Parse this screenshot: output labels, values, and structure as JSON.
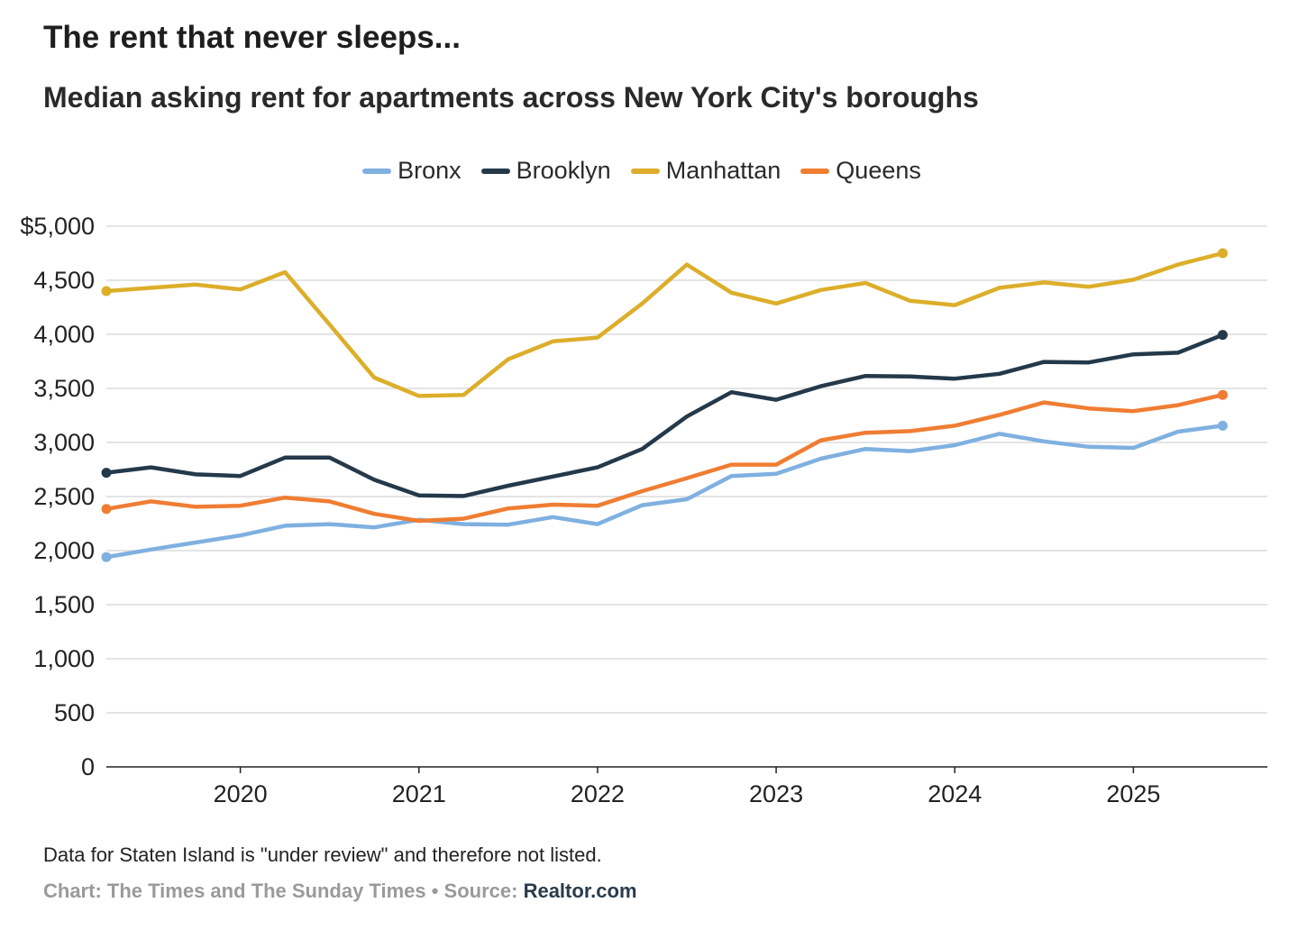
{
  "chart_data": {
    "type": "line",
    "title": "The rent that never sleeps...",
    "subtitle": "Median asking rent for apartments across New York City's boroughs",
    "xlabel": "",
    "ylabel": "",
    "y_ticks": [
      "$5,000",
      "4,500",
      "4,000",
      "3,500",
      "3,000",
      "2,500",
      "2,000",
      "1,500",
      "1,000",
      "500",
      "0"
    ],
    "y_tick_values": [
      5000,
      4500,
      4000,
      3500,
      3000,
      2500,
      2000,
      1500,
      1000,
      500,
      0
    ],
    "ylim": [
      0,
      5000
    ],
    "x_ticks": [
      "2020",
      "2021",
      "2022",
      "2023",
      "2024",
      "2025"
    ],
    "x_tick_values": [
      2020,
      2021,
      2022,
      2023,
      2024,
      2025
    ],
    "xlim": [
      2019.25,
      2025.75
    ],
    "x": [
      2019.25,
      2019.5,
      2019.75,
      2020.0,
      2020.25,
      2020.5,
      2020.75,
      2021.0,
      2021.25,
      2021.5,
      2021.75,
      2022.0,
      2022.25,
      2022.5,
      2022.75,
      2023.0,
      2023.25,
      2023.5,
      2023.75,
      2024.0,
      2024.25,
      2024.5,
      2024.75,
      2025.0,
      2025.25,
      2025.5
    ],
    "legend_position": "top-center",
    "grid": true,
    "series": [
      {
        "name": "Bronx",
        "color": "#7fb0e0",
        "values": [
          1940,
          2010,
          2075,
          2140,
          2230,
          2245,
          2215,
          2285,
          2245,
          2240,
          2310,
          2245,
          2420,
          2475,
          2690,
          2710,
          2850,
          2940,
          2920,
          2975,
          3080,
          3010,
          2960,
          2950,
          3100,
          3155
        ]
      },
      {
        "name": "Brooklyn",
        "color": "#24394a",
        "values": [
          2720,
          2770,
          2705,
          2690,
          2860,
          2860,
          2655,
          2510,
          2505,
          2600,
          2685,
          2770,
          2940,
          3240,
          3465,
          3395,
          3520,
          3615,
          3610,
          3590,
          3635,
          3745,
          3740,
          3815,
          3830,
          3995
        ]
      },
      {
        "name": "Manhattan",
        "color": "#dcae2a",
        "values": [
          4400,
          4430,
          4460,
          4415,
          4575,
          4090,
          3600,
          3430,
          3440,
          3770,
          3935,
          3970,
          4285,
          4645,
          4385,
          4285,
          4410,
          4475,
          4310,
          4270,
          4430,
          4480,
          4440,
          4505,
          4645,
          4750
        ]
      },
      {
        "name": "Queens",
        "color": "#ef7d33",
        "values": [
          2385,
          2455,
          2405,
          2415,
          2490,
          2455,
          2340,
          2275,
          2295,
          2390,
          2425,
          2415,
          2550,
          2670,
          2795,
          2795,
          3020,
          3090,
          3105,
          3155,
          3255,
          3370,
          3315,
          3290,
          3345,
          3440
        ]
      }
    ]
  },
  "footer": {
    "note": "Data for Staten Island is \"under review\" and therefore not listed.",
    "credit_prefix": "Chart: The Times and The Sunday Times • Source: ",
    "source_name": "Realtor.com"
  }
}
